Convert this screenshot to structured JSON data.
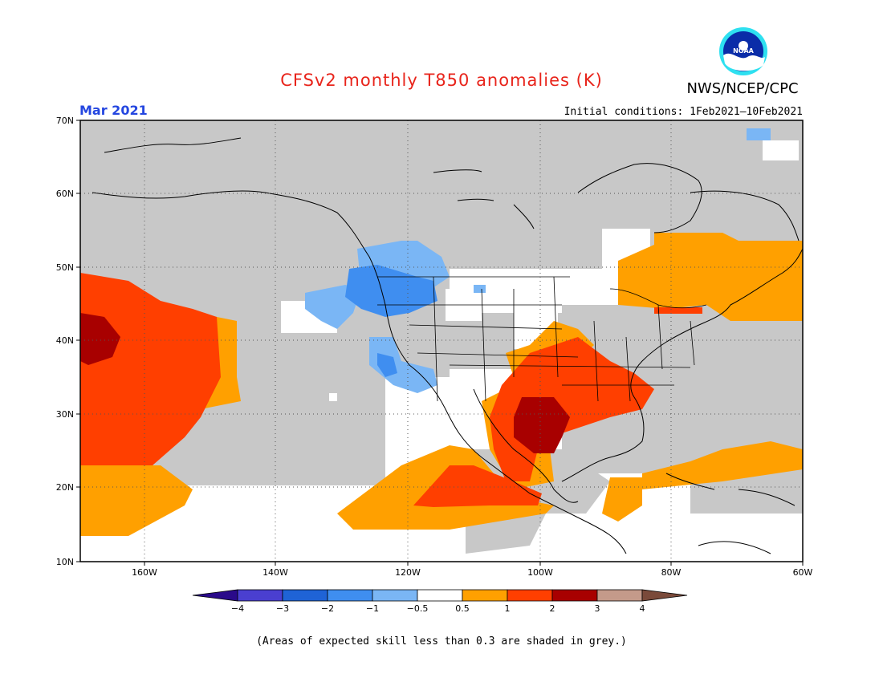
{
  "title": "CFSv2 monthly T850 anomalies (K)",
  "organization": "NWS/NCEP/CPC",
  "logo_text": "NOAA",
  "period": "Mar 2021",
  "initial_conditions": "Initial conditions: 1Feb2021—10Feb2021",
  "lat_labels": [
    "70N",
    "60N",
    "50N",
    "40N",
    "30N",
    "20N",
    "10N"
  ],
  "lon_labels": [
    "160W",
    "140W",
    "120W",
    "100W",
    "80W",
    "60W"
  ],
  "colorbar": {
    "tick_labels": [
      "−4",
      "−3",
      "−2",
      "−1",
      "−0.5",
      "0.5",
      "1",
      "2",
      "3",
      "4"
    ],
    "colors": [
      "#2a0a8a",
      "#4a3fd0",
      "#1f63d6",
      "#3f8ef0",
      "#7ab6f5",
      "#ffffff",
      "#ffa000",
      "#ff3f00",
      "#a80000",
      "#c49a8a",
      "#7a4a3a"
    ]
  },
  "colors": {
    "skill_grey": "#c8c8c8",
    "coast": "#000000",
    "title_red": "#e8241b",
    "period_blue": "#2446e0"
  },
  "footnote": "(Areas of expected skill less than 0.3 are shaded in grey.)"
}
